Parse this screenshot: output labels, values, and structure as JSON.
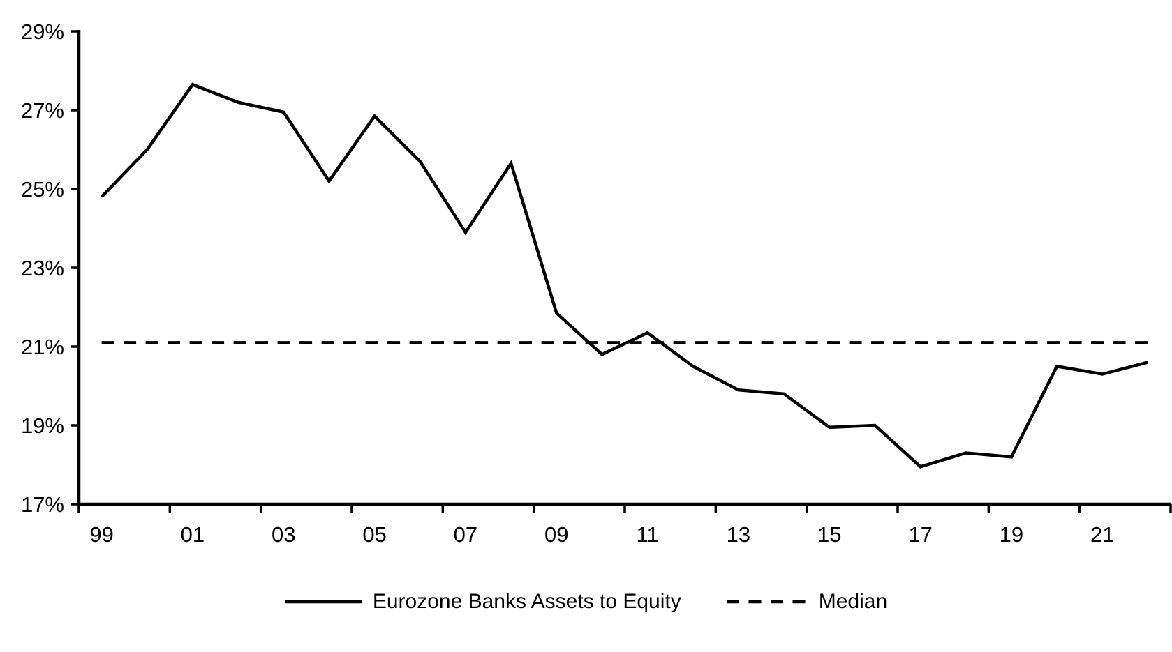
{
  "chart_data": {
    "type": "line",
    "title": "",
    "xlabel": "",
    "ylabel": "",
    "x_years": [
      1999,
      2000,
      2001,
      2002,
      2003,
      2004,
      2005,
      2006,
      2007,
      2008,
      2009,
      2010,
      2011,
      2012,
      2013,
      2014,
      2015,
      2016,
      2017,
      2018,
      2019,
      2020,
      2021,
      2022
    ],
    "x_tick_labels": [
      "99",
      "01",
      "03",
      "05",
      "07",
      "09",
      "11",
      "13",
      "15",
      "17",
      "19",
      "21"
    ],
    "y_tick_labels": [
      "29%",
      "27%",
      "25%",
      "23%",
      "21%",
      "19%",
      "17%"
    ],
    "y_tick_values": [
      29,
      27,
      25,
      23,
      21,
      19,
      17
    ],
    "ylim": [
      17,
      29
    ],
    "grid": false,
    "legend_position": "bottom-center",
    "series": [
      {
        "name": "Eurozone Banks Assets to Equity",
        "style": "solid",
        "color": "#000000",
        "values": [
          24.8,
          26.0,
          27.65,
          27.2,
          26.95,
          25.2,
          26.85,
          25.7,
          23.9,
          25.65,
          21.85,
          20.8,
          21.35,
          20.5,
          19.9,
          19.8,
          18.95,
          19.0,
          17.95,
          18.3,
          18.2,
          20.5,
          20.3,
          20.6
        ]
      },
      {
        "name": "Median",
        "style": "dashed",
        "color": "#000000",
        "constant_value": 21.1
      }
    ]
  },
  "legend": {
    "series_label": "Eurozone Banks Assets to Equity",
    "median_label": "Median"
  },
  "colors": {
    "axis": "#000000",
    "text": "#000000",
    "background": "#ffffff"
  }
}
